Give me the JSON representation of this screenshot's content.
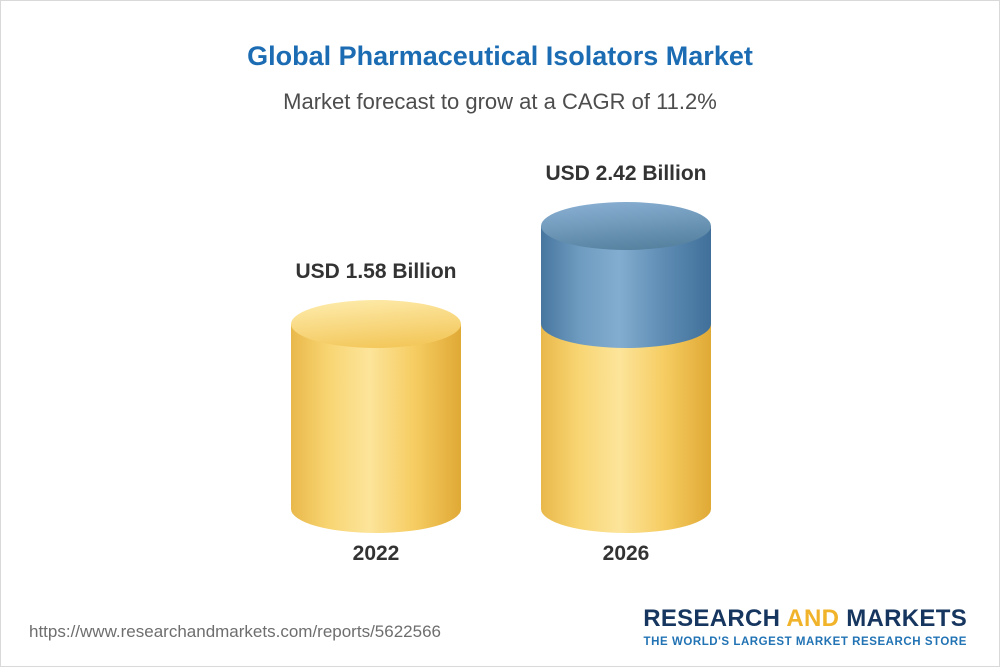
{
  "header": {
    "title": "Global Pharmaceutical Isolators Market",
    "subtitle": "Market forecast to grow at a CAGR of 11.2%"
  },
  "chart_data": {
    "type": "bar",
    "title": "Global Pharmaceutical Isolators Market",
    "subtitle": "Market forecast to grow at a CAGR of 11.2%",
    "unit": "USD Billion",
    "categories": [
      "2022",
      "2026"
    ],
    "values": [
      1.58,
      2.42
    ],
    "value_labels": [
      "USD 1.58 Billion",
      "USD 2.42 Billion"
    ],
    "cagr_percent": 11.2,
    "series": [
      {
        "name": "base",
        "values": [
          1.58,
          1.58
        ]
      },
      {
        "name": "growth",
        "values": [
          0,
          0.84
        ]
      }
    ],
    "colors": {
      "base": {
        "body": [
          "#e9b84b",
          "#f8d572",
          "#fce49a",
          "#f6cd63",
          "#e0a935"
        ],
        "cap": [
          "#fde9a6",
          "#f3c75a"
        ]
      },
      "growth": {
        "body": [
          "#47769f",
          "#6d9bbf",
          "#83add0",
          "#5e8cb3",
          "#40709a"
        ],
        "cap": [
          "#86add0",
          "#56819f"
        ]
      }
    },
    "ylim": [
      0,
      2.6
    ],
    "grid": false,
    "legend": false
  },
  "footer": {
    "url": "https://www.researchandmarkets.com/reports/5622566",
    "logo": {
      "research": "RESEARCH",
      "and": "AND",
      "markets": "MARKETS",
      "tagline": "THE WORLD'S LARGEST MARKET RESEARCH STORE"
    }
  }
}
